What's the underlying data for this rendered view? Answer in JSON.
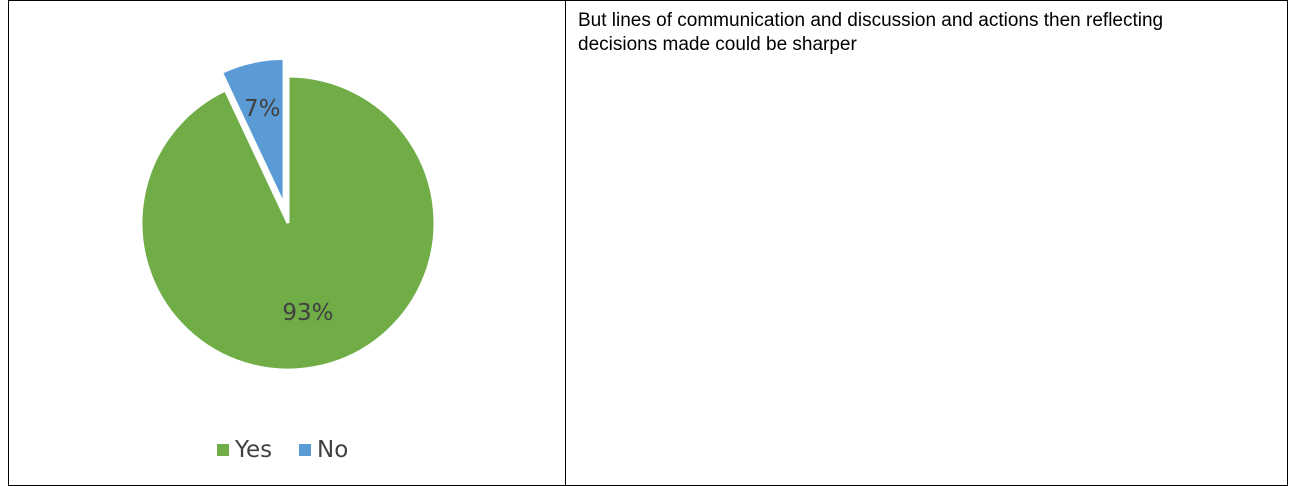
{
  "chart_data": {
    "type": "pie",
    "categories": [
      "Yes",
      "No"
    ],
    "values": [
      93,
      7
    ],
    "data_labels": [
      "93%",
      "7%"
    ],
    "colors": [
      "#70AD47",
      "#5B9BD5"
    ],
    "exploded": "No",
    "legend": "bottom"
  },
  "comment": {
    "text": "But lines of communication and discussion and actions then reflecting decisions made could be sharper"
  }
}
